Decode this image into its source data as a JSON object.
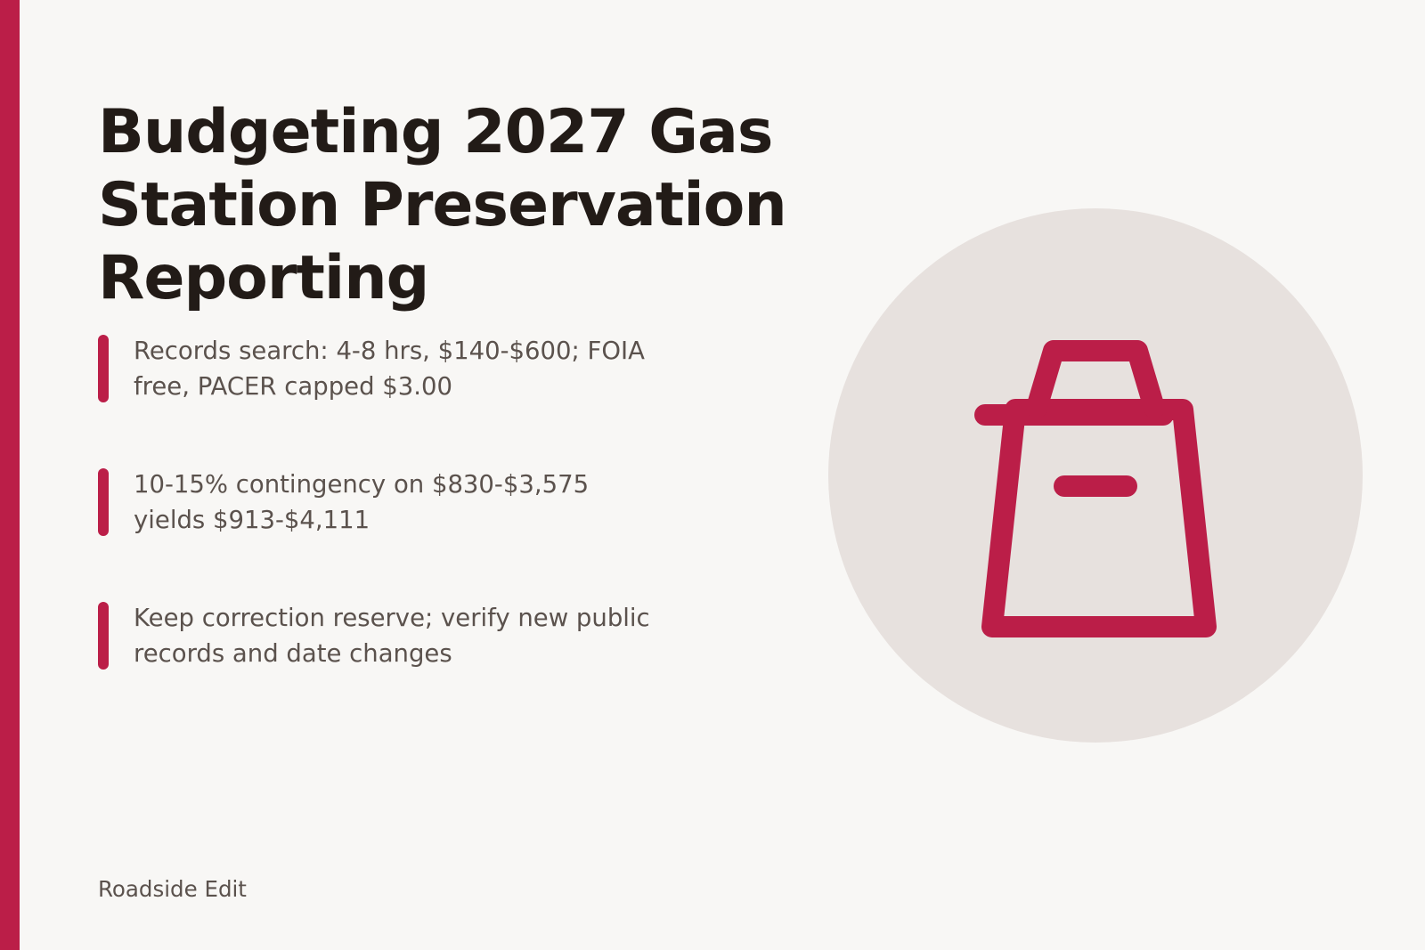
{
  "slide": {
    "title": "Budgeting 2027 Gas Station Preservation Reporting",
    "bullets": [
      "Records search: 4-8 hrs, $140-$600; FOIA free, PACER capped $3.00",
      "10-15% contingency on $830-$3,575 yields $913-$4,111",
      "Keep correction reserve; verify new public records and date changes"
    ],
    "footer": "Roadside Edit",
    "illustration_icon": "gas-pump-icon"
  },
  "colors": {
    "accent": "#bb1e48",
    "background": "#f8f7f5",
    "title": "#221b17",
    "body_text": "#5b524d",
    "circle": "#e7e1de"
  }
}
